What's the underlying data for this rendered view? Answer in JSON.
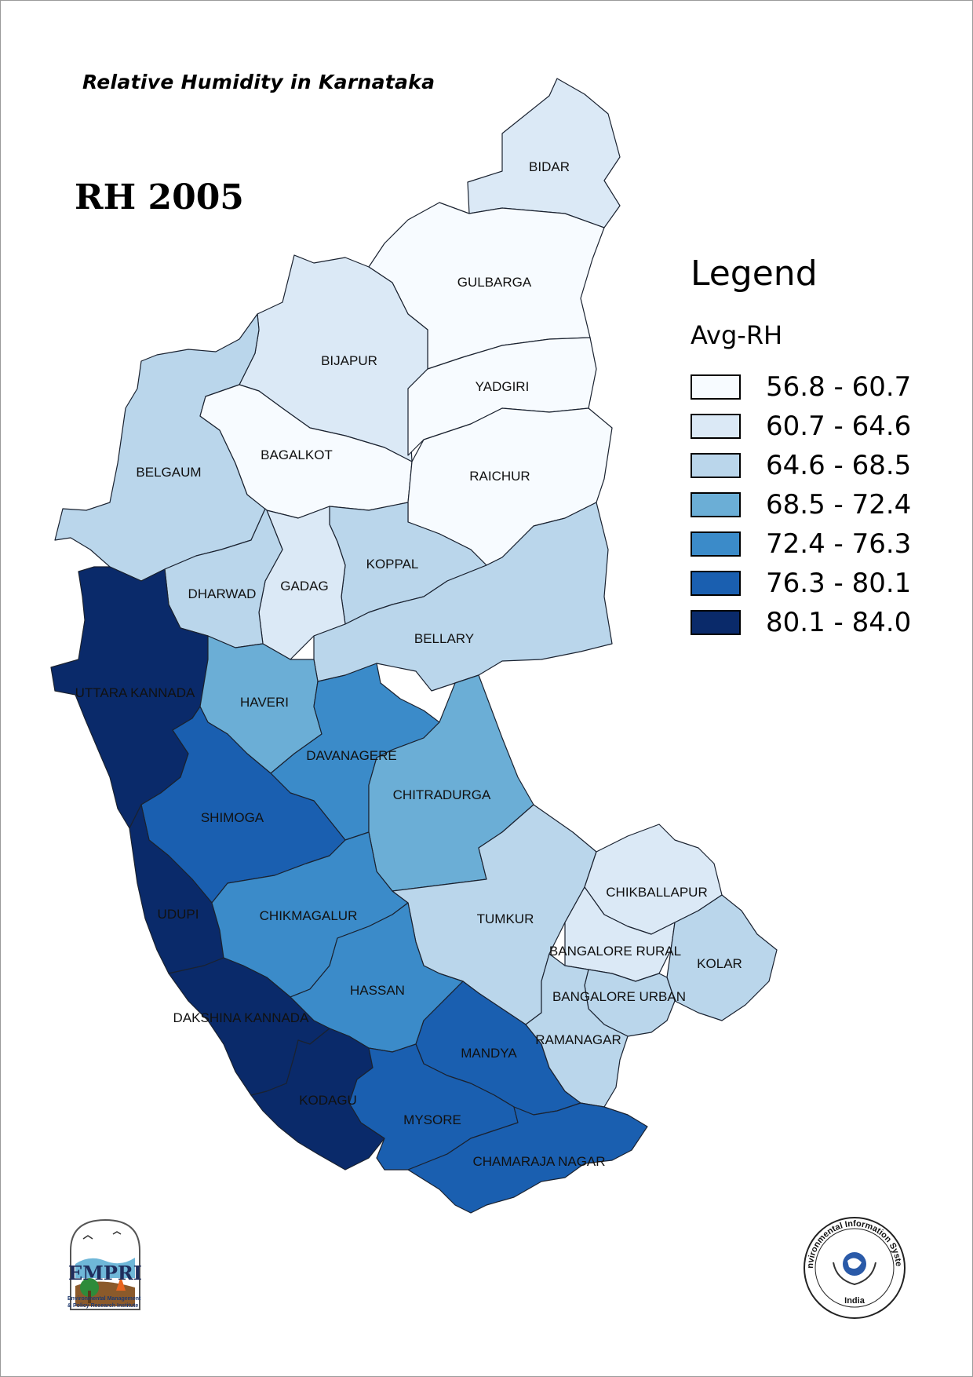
{
  "subtitle": "Relative Humidity in Karnataka",
  "title": "RH 2005",
  "legend": {
    "heading": "Legend",
    "field": "Avg-RH",
    "classes": [
      {
        "range": "56.8 - 60.7",
        "color": "#f7fbff"
      },
      {
        "range": "60.7 - 64.6",
        "color": "#dbe9f6"
      },
      {
        "range": "64.6 - 68.5",
        "color": "#bad6eb"
      },
      {
        "range": "68.5 - 72.4",
        "color": "#6baed6"
      },
      {
        "range": "72.4 - 76.3",
        "color": "#3b8bc9"
      },
      {
        "range": "76.3 - 80.1",
        "color": "#1a5fb0"
      },
      {
        "range": "80.1 - 84.0",
        "color": "#0a2a6a"
      }
    ]
  },
  "districts": [
    {
      "name": "BIDAR",
      "class": 1
    },
    {
      "name": "GULBARGA",
      "class": 0
    },
    {
      "name": "BIJAPUR",
      "class": 1
    },
    {
      "name": "YADGIRI",
      "class": 0
    },
    {
      "name": "BELGAUM",
      "class": 2
    },
    {
      "name": "BAGALKOT",
      "class": 0
    },
    {
      "name": "RAICHUR",
      "class": 0
    },
    {
      "name": "KOPPAL",
      "class": 2
    },
    {
      "name": "GADAG",
      "class": 1
    },
    {
      "name": "DHARWAD",
      "class": 2
    },
    {
      "name": "BELLARY",
      "class": 2
    },
    {
      "name": "UTTARA KANNADA",
      "class": 6
    },
    {
      "name": "HAVERI",
      "class": 3
    },
    {
      "name": "DAVANAGERE",
      "class": 4
    },
    {
      "name": "CHITRADURGA",
      "class": 3
    },
    {
      "name": "SHIMOGA",
      "class": 5
    },
    {
      "name": "UDUPI",
      "class": 6
    },
    {
      "name": "CHIKMAGALUR",
      "class": 4
    },
    {
      "name": "TUMKUR",
      "class": 2
    },
    {
      "name": "CHIKBALLAPUR",
      "class": 1
    },
    {
      "name": "BANGALORE RURAL",
      "class": 1
    },
    {
      "name": "KOLAR",
      "class": 2
    },
    {
      "name": "BANGALORE URBAN",
      "class": 2
    },
    {
      "name": "HASSAN",
      "class": 4
    },
    {
      "name": "DAKSHINA KANNADA",
      "class": 6
    },
    {
      "name": "MANDYA",
      "class": 5
    },
    {
      "name": "RAMANAGAR",
      "class": 2
    },
    {
      "name": "KODAGU",
      "class": 6
    },
    {
      "name": "MYSORE",
      "class": 5
    },
    {
      "name": "CHAMARAJA NAGAR",
      "class": 5
    }
  ],
  "logos": {
    "empri_mark": "EMPRI",
    "empri_caption": "Environmental Management & Policy Research Institute",
    "eis_ring": "Environmental Information System",
    "eis_country": "India"
  }
}
